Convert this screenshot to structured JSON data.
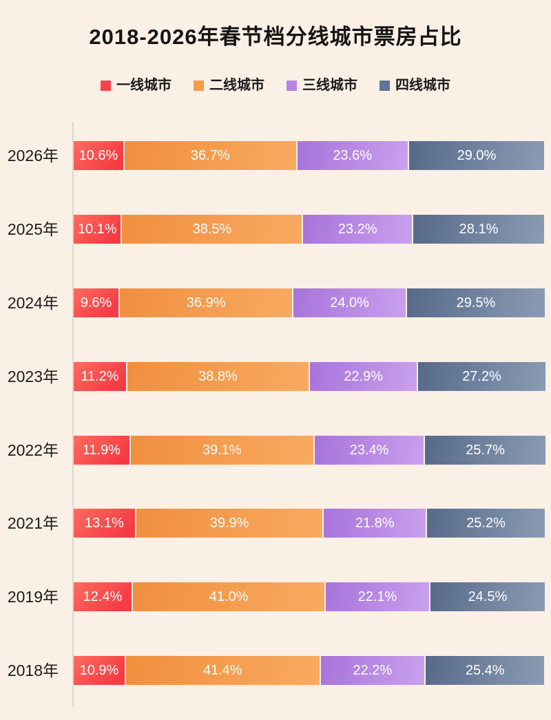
{
  "chart_data": {
    "type": "bar",
    "variant": "horizontal-stacked",
    "title": "2018-2026年春节档分线城市票房占比",
    "unit": "%",
    "xlim": [
      0,
      100
    ],
    "grid": false,
    "legend_position": "top",
    "background_color": "#fbf0e5",
    "axis_line_color": "#dcd6ce",
    "value_label_color": "#ffffff",
    "categories": [
      "2026年",
      "2025年",
      "2024年",
      "2023年",
      "2022年",
      "2021年",
      "2019年",
      "2018年"
    ],
    "series": [
      {
        "name": "一线城市",
        "color": "#f4434b",
        "values": [
          10.6,
          10.1,
          9.6,
          11.2,
          11.9,
          13.1,
          12.4,
          10.9
        ]
      },
      {
        "name": "二线城市",
        "color": "#f59d4e",
        "values": [
          36.7,
          38.5,
          36.9,
          38.8,
          39.1,
          39.9,
          41.0,
          41.4
        ]
      },
      {
        "name": "三线城市",
        "color": "#b783e7",
        "values": [
          23.6,
          23.2,
          24.0,
          22.9,
          23.4,
          21.8,
          22.1,
          22.2
        ]
      },
      {
        "name": "四线城市",
        "color": "#5e7593",
        "values": [
          29.0,
          28.1,
          29.5,
          27.2,
          25.7,
          25.2,
          24.5,
          25.4
        ]
      }
    ]
  }
}
